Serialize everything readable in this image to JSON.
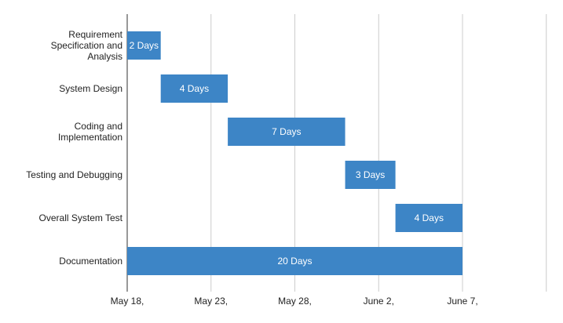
{
  "chart_data": {
    "type": "bar",
    "subtype": "gantt",
    "x_axis": {
      "min": "May 18,",
      "max_days": 25,
      "ticks": [
        "May 18,",
        "May 23,",
        "May 28,",
        "June 2,",
        "June 7,"
      ],
      "tick_step_days": 5
    },
    "grid": true,
    "bar_color": "#3d85c6",
    "tasks": [
      {
        "name": [
          "Requirement",
          "Specification and",
          "Analysis"
        ],
        "start_day": 0,
        "duration": 2,
        "label": "2 Days"
      },
      {
        "name": [
          "System Design"
        ],
        "start_day": 2,
        "duration": 4,
        "label": "4 Days"
      },
      {
        "name": [
          "Coding and",
          "Implementation"
        ],
        "start_day": 6,
        "duration": 7,
        "label": "7 Days"
      },
      {
        "name": [
          "Testing and Debugging"
        ],
        "start_day": 13,
        "duration": 3,
        "label": "3 Days"
      },
      {
        "name": [
          "Overall System Test"
        ],
        "start_day": 16,
        "duration": 4,
        "label": "4 Days"
      },
      {
        "name": [
          "Documentation"
        ],
        "start_day": 0,
        "duration": 20,
        "label": "20 Days"
      }
    ]
  }
}
